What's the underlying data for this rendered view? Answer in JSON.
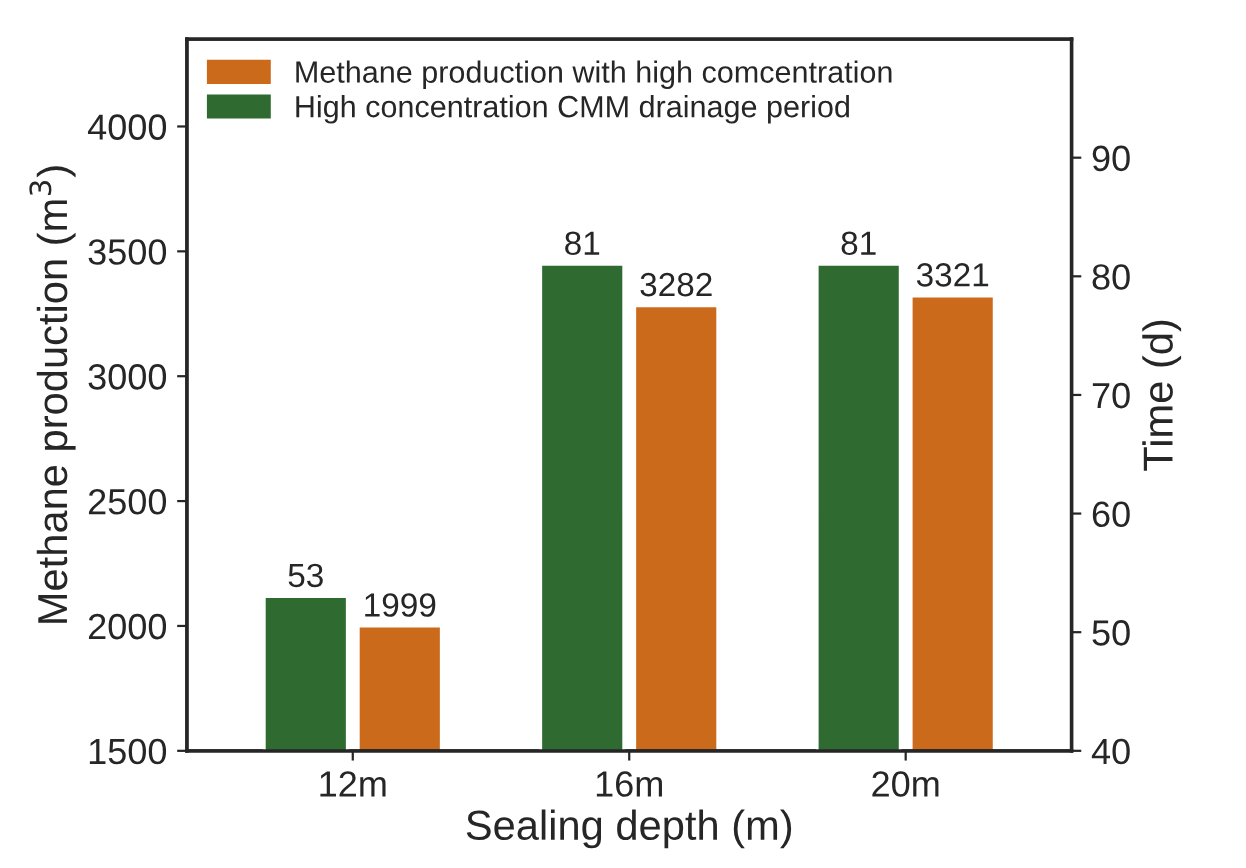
{
  "chart_data": {
    "type": "bar",
    "categories": [
      "12m",
      "16m",
      "20m"
    ],
    "xlabel": "Sealing depth (m)",
    "ylabel": "Methane production (m$^{3}$)",
    "y2label": "Time (d)",
    "series": [
      {
        "name": "High concentration CMM drainage period",
        "color": "#2f6a31",
        "values": [
          53,
          81,
          81
        ],
        "axis": "y2"
      },
      {
        "name": "Methane production with high comcentration",
        "color": "#cc6a1c",
        "values": [
          1999,
          3282,
          3321
        ]
      }
    ],
    "ylim": [
      1500,
      4350
    ],
    "yticks": [
      1500,
      2000,
      2500,
      3000,
      3500,
      4000
    ],
    "y2lim": [
      40,
      100
    ],
    "y2ticks": [
      40,
      50,
      60,
      70,
      80,
      90
    ],
    "data_labels": true,
    "legend": "top left",
    "grid": false
  }
}
